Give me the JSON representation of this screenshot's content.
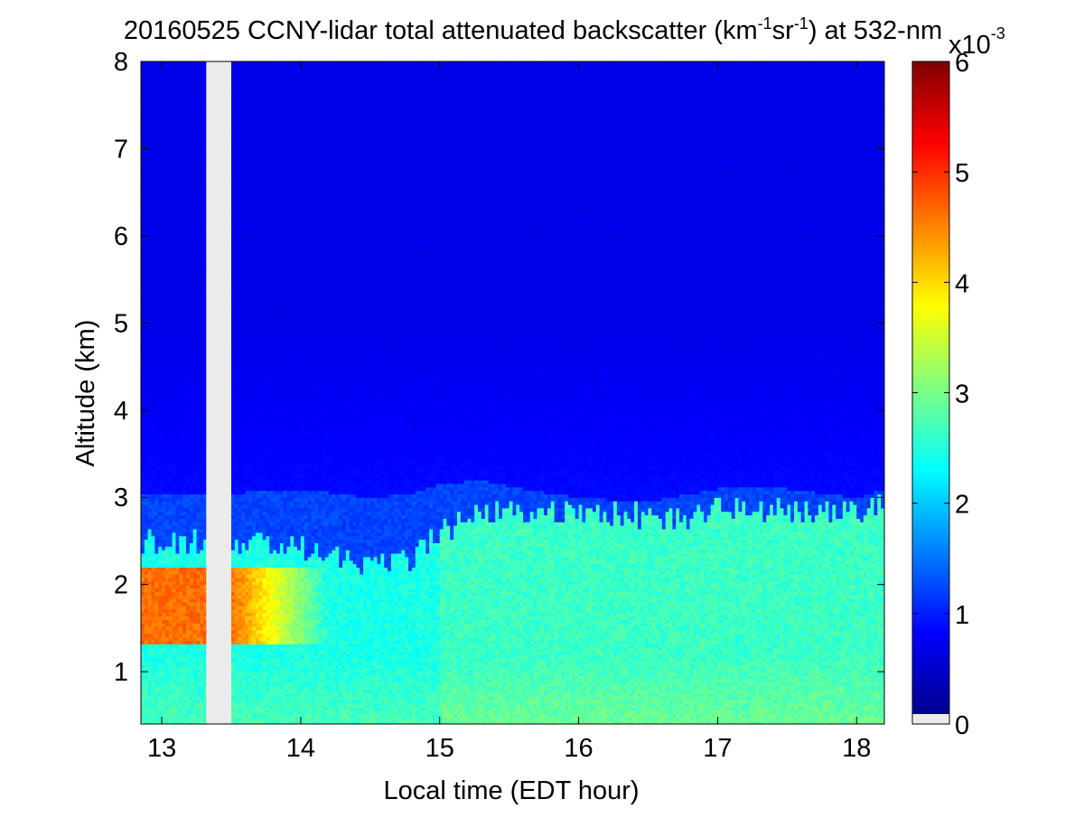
{
  "chart_data": {
    "type": "heatmap",
    "title": {
      "main": "20160525 CCNY-lidar total attenuated backscatter (km",
      "exp1": "-1",
      "mid": "sr",
      "exp2": "-1",
      "tail": ") at 532-nm"
    },
    "xlabel": "Local time (EDT hour)",
    "ylabel": "Altitude (km)",
    "xlim": [
      12.85,
      18.2
    ],
    "ylim": [
      0.4,
      8
    ],
    "xticks": [
      13,
      14,
      15,
      16,
      17,
      18
    ],
    "yticks": [
      1,
      2,
      3,
      4,
      5,
      6,
      7,
      8
    ],
    "colormap": "jet",
    "colorbar": {
      "min": 0,
      "max": 6,
      "ticks": [
        0,
        1,
        2,
        3,
        4,
        5,
        6
      ],
      "multiplier_base": "x10",
      "multiplier_exp": "-3",
      "nodata_color": "#ebebeb"
    },
    "data_gap": {
      "x_start": 13.32,
      "x_end": 13.5
    },
    "layers": [
      {
        "name": "boundary-layer-top",
        "x": [
          12.85,
          13.0,
          13.3,
          13.5,
          13.8,
          14.2,
          14.5,
          14.8,
          15.0,
          15.3,
          15.6,
          16.0,
          16.4,
          16.8,
          17.0,
          17.5,
          18.0,
          18.2
        ],
        "top_km": [
          2.5,
          2.5,
          2.5,
          2.5,
          2.45,
          2.4,
          2.2,
          2.3,
          2.6,
          2.85,
          2.85,
          2.8,
          2.8,
          2.75,
          2.9,
          2.85,
          2.85,
          2.95
        ]
      },
      {
        "name": "residual-layer-top",
        "x": [
          12.85,
          13.5,
          14.0,
          14.5,
          14.8,
          15.0,
          15.3,
          15.6,
          16.0,
          16.5,
          17.0,
          17.5,
          18.0,
          18.2
        ],
        "top_km": [
          2.9,
          2.9,
          2.95,
          2.85,
          2.9,
          3.0,
          3.05,
          2.95,
          2.85,
          2.8,
          2.95,
          2.95,
          2.85,
          2.95
        ]
      }
    ],
    "values_summary": {
      "free_troposphere": 0.6,
      "boundary_layer": 2.4,
      "boundary_layer_surface_after_15": 2.6,
      "aerosol_peak_13h": 4.6
    }
  },
  "colors": {
    "background": "#ffffff",
    "axes_edge": "#000000"
  }
}
